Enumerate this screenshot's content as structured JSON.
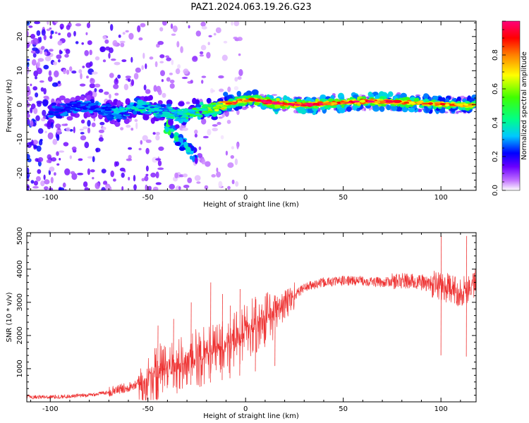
{
  "title": "PAZ1.2024.063.19.26.G23",
  "chart_data": [
    {
      "type": "heatmap",
      "xlabel": "Height of straight line (km)",
      "ylabel": "Frequency (Hz)",
      "xlim": [
        -112,
        118
      ],
      "ylim": [
        -25,
        24.5
      ],
      "xticks": [
        -100,
        -50,
        0,
        50,
        100
      ],
      "yticks": [
        -20,
        -10,
        0,
        10,
        20
      ],
      "colorbar": {
        "label": "Normalized spectral amplitude",
        "range": [
          0,
          1
        ],
        "ticks": [
          0.0,
          0.2,
          0.4,
          0.6,
          0.8
        ],
        "colormap": [
          "#ffffff",
          "#c070ff",
          "#6a00ff",
          "#0000ff",
          "#00c8ff",
          "#00ff88",
          "#40ff00",
          "#ffff00",
          "#ff8000",
          "#ff0000",
          "#ff007a"
        ]
      },
      "ridge": [
        {
          "x": -95,
          "y": -1.5,
          "amp": 0.3
        },
        {
          "x": -85,
          "y": -0.5,
          "amp": 0.35
        },
        {
          "x": -75,
          "y": -1.0,
          "amp": 0.35
        },
        {
          "x": -65,
          "y": -2.5,
          "amp": 0.4
        },
        {
          "x": -55,
          "y": 0.0,
          "amp": 0.45
        },
        {
          "x": -45,
          "y": -2.0,
          "amp": 0.45
        },
        {
          "x": -35,
          "y": -3.0,
          "amp": 0.5
        },
        {
          "x": -25,
          "y": -2.0,
          "amp": 0.55
        },
        {
          "x": -15,
          "y": -0.5,
          "amp": 0.7
        },
        {
          "x": -5,
          "y": 1.0,
          "amp": 0.85
        },
        {
          "x": 5,
          "y": 1.5,
          "amp": 0.9
        },
        {
          "x": 15,
          "y": 0.5,
          "amp": 1.0
        },
        {
          "x": 30,
          "y": 0.0,
          "amp": 1.0
        },
        {
          "x": 45,
          "y": 0.5,
          "amp": 0.9
        },
        {
          "x": 60,
          "y": 1.0,
          "amp": 0.95
        },
        {
          "x": 75,
          "y": 1.0,
          "amp": 0.9
        },
        {
          "x": 90,
          "y": 0.5,
          "amp": 0.8
        },
        {
          "x": 105,
          "y": 0.0,
          "amp": 0.8
        },
        {
          "x": 118,
          "y": 0.0,
          "amp": 0.75
        }
      ],
      "secondary_branch": [
        {
          "x": -40,
          "y": -6.0,
          "amp": 0.45
        },
        {
          "x": -32,
          "y": -12.0,
          "amp": 0.35
        },
        {
          "x": -25,
          "y": -16.0,
          "amp": 0.25
        }
      ]
    },
    {
      "type": "line",
      "xlabel": "Height of straight line (km)",
      "ylabel": "SNR (10 * v/v)",
      "xlim": [
        -112,
        118
      ],
      "ylim": [
        0,
        5100
      ],
      "xticks": [
        -100,
        -50,
        0,
        50,
        100
      ],
      "yticks": [
        1000,
        2000,
        3000,
        4000,
        5000
      ],
      "color": "#ee3333",
      "series": [
        {
          "points": [
            [
              -112,
              150
            ],
            [
              -100,
              150
            ],
            [
              -90,
              170
            ],
            [
              -80,
              200
            ],
            [
              -70,
              300
            ],
            [
              -60,
              450
            ],
            [
              -50,
              700
            ],
            [
              -40,
              1000
            ],
            [
              -30,
              1250
            ],
            [
              -20,
              1400
            ],
            [
              -10,
              1700
            ],
            [
              0,
              2100
            ],
            [
              10,
              2500
            ],
            [
              20,
              2900
            ],
            [
              25,
              3200
            ],
            [
              30,
              3450
            ],
            [
              40,
              3600
            ],
            [
              50,
              3650
            ],
            [
              60,
              3650
            ],
            [
              70,
              3600
            ],
            [
              80,
              3650
            ],
            [
              90,
              3600
            ],
            [
              100,
              3500
            ],
            [
              110,
              3300
            ],
            [
              118,
              3600
            ]
          ],
          "spikes": [
            [
              -45,
              2300
            ],
            [
              -37,
              2500
            ],
            [
              -28,
              3000
            ],
            [
              -18,
              3600
            ],
            [
              -12,
              3250
            ],
            [
              -8,
              2900
            ],
            [
              -3,
              3400
            ],
            [
              5,
              2800
            ],
            [
              15,
              3200
            ],
            [
              100,
              5000
            ],
            [
              113,
              5000
            ]
          ]
        }
      ]
    }
  ]
}
